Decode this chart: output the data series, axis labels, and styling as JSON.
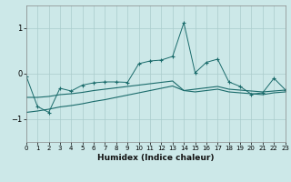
{
  "xlabel": "Humidex (Indice chaleur)",
  "bg_color": "#cce8e8",
  "grid_color": "#aacccc",
  "line_color": "#1a6b6b",
  "xlim": [
    0,
    23
  ],
  "ylim": [
    -1.5,
    1.5
  ],
  "yticks": [
    -1,
    0,
    1
  ],
  "xticks": [
    0,
    1,
    2,
    3,
    4,
    5,
    6,
    7,
    8,
    9,
    10,
    11,
    12,
    13,
    14,
    15,
    16,
    17,
    18,
    19,
    20,
    21,
    22,
    23
  ],
  "x": [
    0,
    1,
    2,
    3,
    4,
    5,
    6,
    7,
    8,
    9,
    10,
    11,
    12,
    13,
    14,
    15,
    16,
    17,
    18,
    19,
    20,
    21,
    22,
    23
  ],
  "line1": [
    -0.05,
    -0.72,
    -0.85,
    -0.32,
    -0.38,
    -0.25,
    -0.2,
    -0.18,
    -0.18,
    -0.19,
    0.22,
    0.28,
    0.3,
    0.38,
    1.12,
    0.02,
    0.25,
    0.32,
    -0.18,
    -0.28,
    -0.45,
    -0.42,
    -0.1,
    -0.35
  ],
  "line2": [
    -0.52,
    -0.52,
    -0.5,
    -0.46,
    -0.44,
    -0.41,
    -0.37,
    -0.34,
    -0.31,
    -0.28,
    -0.25,
    -0.22,
    -0.19,
    -0.16,
    -0.37,
    -0.34,
    -0.31,
    -0.28,
    -0.34,
    -0.36,
    -0.38,
    -0.4,
    -0.38,
    -0.36
  ],
  "line3": [
    -0.85,
    -0.82,
    -0.78,
    -0.73,
    -0.7,
    -0.66,
    -0.61,
    -0.57,
    -0.52,
    -0.47,
    -0.42,
    -0.37,
    -0.32,
    -0.27,
    -0.37,
    -0.4,
    -0.37,
    -0.34,
    -0.4,
    -0.42,
    -0.44,
    -0.46,
    -0.42,
    -0.4
  ]
}
